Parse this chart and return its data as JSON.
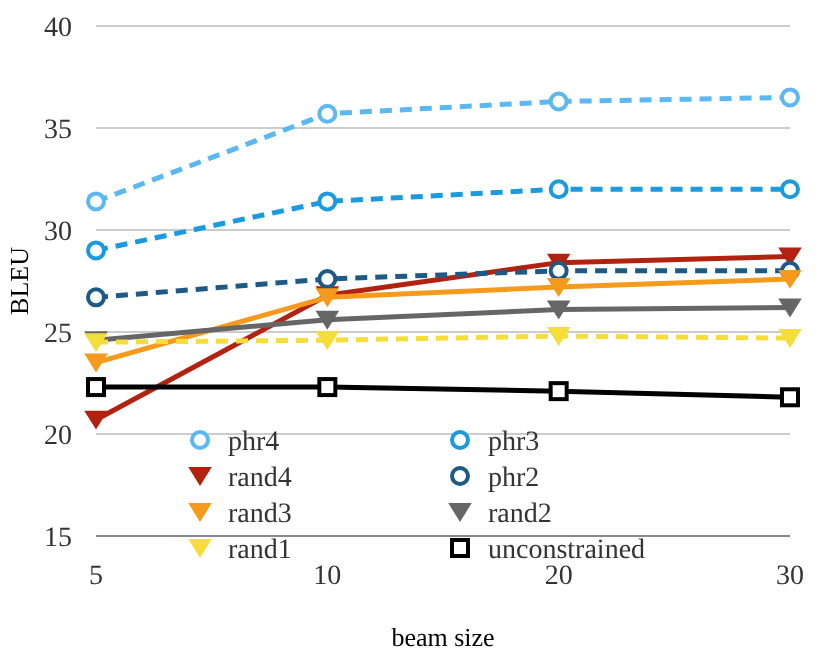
{
  "chart_data": {
    "type": "line",
    "xlabel": "beam size",
    "ylabel": "BLEU",
    "categories": [
      "5",
      "10",
      "20",
      "30"
    ],
    "ylim": [
      15,
      40
    ],
    "yticks": [
      15,
      20,
      25,
      30,
      35,
      40
    ],
    "grid": "y",
    "legend": "bottom",
    "series": [
      {
        "name": "phr4",
        "color": "#5bb8f0",
        "marker": "circle",
        "line_style": "dashed",
        "values": [
          31.4,
          35.7,
          36.3,
          36.5
        ]
      },
      {
        "name": "phr3",
        "color": "#1a9be0",
        "marker": "circle",
        "line_style": "dashed",
        "values": [
          29.0,
          31.4,
          32.0,
          32.0
        ]
      },
      {
        "name": "rand4",
        "color": "#b22210",
        "marker": "triangle",
        "line_style": "solid",
        "values": [
          20.7,
          26.8,
          28.4,
          28.7
        ]
      },
      {
        "name": "phr2",
        "color": "#1d5a85",
        "marker": "circle",
        "line_style": "dashed",
        "values": [
          26.7,
          27.6,
          28.0,
          28.0
        ]
      },
      {
        "name": "rand3",
        "color": "#f59a1a",
        "marker": "triangle",
        "line_style": "solid",
        "values": [
          23.5,
          26.7,
          27.2,
          27.6
        ]
      },
      {
        "name": "rand2",
        "color": "#666666",
        "marker": "triangle",
        "line_style": "solid",
        "values": [
          24.6,
          25.6,
          26.1,
          26.2
        ]
      },
      {
        "name": "rand1",
        "color": "#f5dd3a",
        "marker": "triangle",
        "line_style": "dashed",
        "values": [
          24.5,
          24.6,
          24.8,
          24.7
        ]
      },
      {
        "name": "unconstrained",
        "color": "#000000",
        "marker": "square",
        "line_style": "solid",
        "values": [
          22.3,
          22.3,
          22.1,
          21.8
        ]
      }
    ]
  }
}
